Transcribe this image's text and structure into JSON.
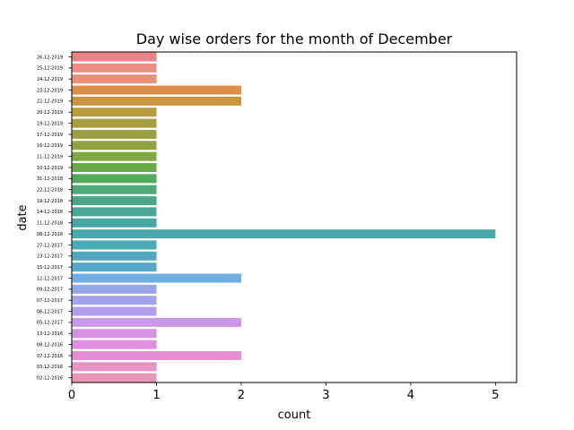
{
  "chart_data": {
    "type": "bar",
    "orientation": "horizontal",
    "title": "Day wise orders for the month of December",
    "xlabel": "count",
    "ylabel": "date",
    "xlim": [
      0,
      5.25
    ],
    "xticks": [
      "0",
      "1",
      "2",
      "3",
      "4",
      "5"
    ],
    "grid": false,
    "categories": [
      "26-12-2019",
      "25-12-2019",
      "24-12-2019",
      "23-12-2019",
      "22-12-2019",
      "20-12-2019",
      "19-12-2019",
      "17-12-2019",
      "16-12-2019",
      "11-12-2019",
      "10-12-2019",
      "31-12-2018",
      "22-12-2018",
      "19-12-2018",
      "14-12-2018",
      "11-12-2018",
      "08-12-2018",
      "27-12-2017",
      "23-12-2017",
      "15-12-2017",
      "12-12-2017",
      "09-12-2017",
      "07-12-2017",
      "06-12-2017",
      "05-12-2017",
      "13-12-2016",
      "08-12-2016",
      "07-12-2016",
      "03-12-2016",
      "02-12-2016"
    ],
    "values": [
      1,
      1,
      1,
      2,
      2,
      1,
      1,
      1,
      1,
      1,
      1,
      1,
      1,
      1,
      1,
      1,
      5,
      1,
      1,
      1,
      2,
      1,
      1,
      1,
      2,
      1,
      1,
      2,
      1,
      1
    ],
    "colors": [
      "#e8838a",
      "#e98e82",
      "#e4937a",
      "#d98f47",
      "#c9963f",
      "#b89c3e",
      "#a89d3f",
      "#9ca03e",
      "#8fa43f",
      "#7fa843",
      "#6aab48",
      "#50ac5a",
      "#4caa78",
      "#4aa888",
      "#48a796",
      "#47a7a2",
      "#48aaaa",
      "#4aabb5",
      "#4ea9c0",
      "#55a7cc",
      "#6faee0",
      "#95a6e6",
      "#a3a2ea",
      "#b39ceb",
      "#c998e8",
      "#d890e3",
      "#e08ee0",
      "#e58fd3",
      "#e992c4",
      "#ea95b5"
    ]
  }
}
